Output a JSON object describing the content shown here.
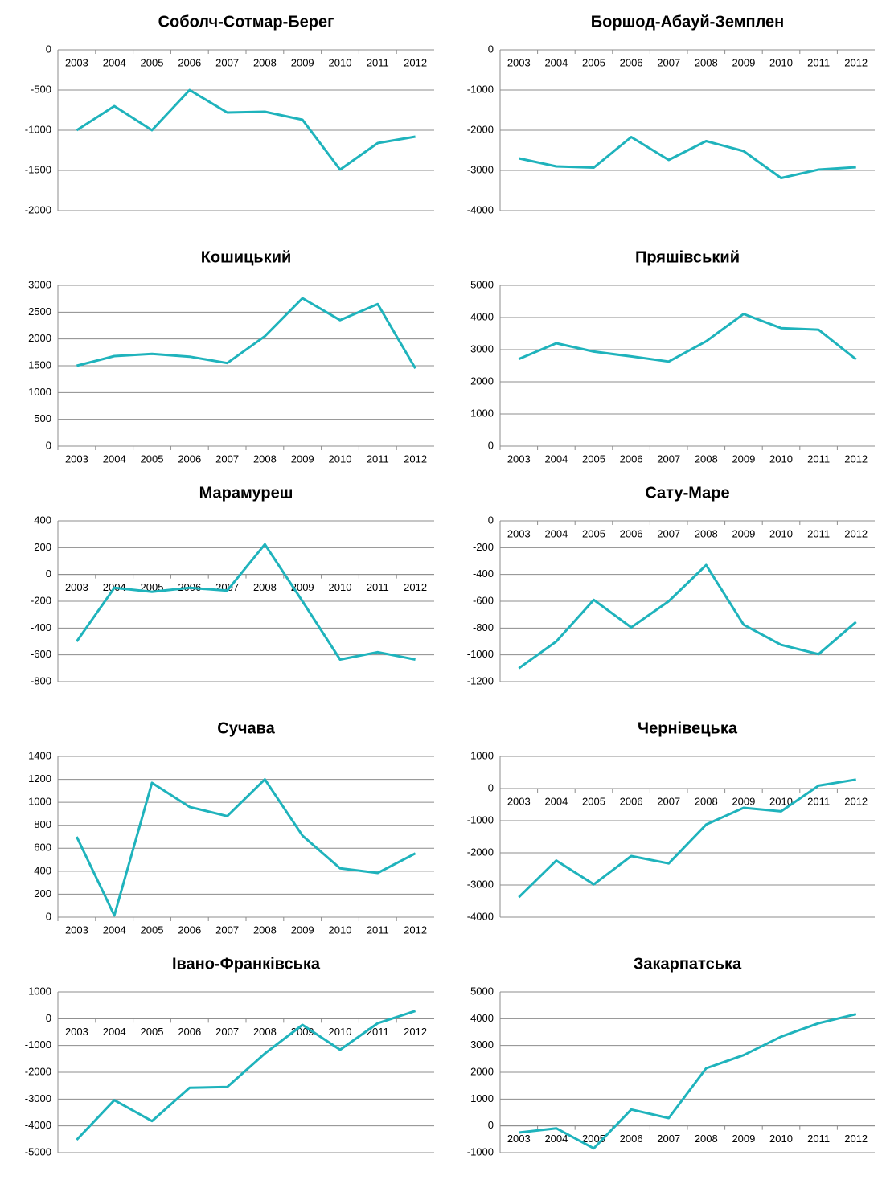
{
  "chart_data": [
    {
      "type": "line",
      "title": "Соболч-Сотмар-Берег",
      "categories": [
        "2003",
        "2004",
        "2005",
        "2006",
        "2007",
        "2008",
        "2009",
        "2010",
        "2011",
        "2012"
      ],
      "values": [
        -1000,
        -700,
        -1000,
        -500,
        -780,
        -770,
        -870,
        -1490,
        -1160,
        -1080
      ],
      "color": "#1fb3bc",
      "ylim": [
        -2000,
        0
      ],
      "yticks": [
        0,
        -500,
        -1000,
        -1500,
        -2000
      ],
      "grid": true
    },
    {
      "type": "line",
      "title": "Боршод-Абауй-Земплен",
      "categories": [
        "2003",
        "2004",
        "2005",
        "2006",
        "2007",
        "2008",
        "2009",
        "2010",
        "2011",
        "2012"
      ],
      "values": [
        -2700,
        -2900,
        -2930,
        -2170,
        -2740,
        -2270,
        -2520,
        -3190,
        -2980,
        -2920
      ],
      "color": "#1fb3bc",
      "ylim": [
        -4000,
        0
      ],
      "yticks": [
        0,
        -1000,
        -2000,
        -3000,
        -4000
      ],
      "grid": true
    },
    {
      "type": "line",
      "title": "Кошицький",
      "categories": [
        "2003",
        "2004",
        "2005",
        "2006",
        "2007",
        "2008",
        "2009",
        "2010",
        "2011",
        "2012"
      ],
      "values": [
        1500,
        1680,
        1720,
        1670,
        1550,
        2050,
        2760,
        2350,
        2650,
        1450
      ],
      "color": "#1fb3bc",
      "ylim": [
        0,
        3000
      ],
      "yticks": [
        3000,
        2500,
        2000,
        1500,
        1000,
        500,
        0
      ],
      "grid": true
    },
    {
      "type": "line",
      "title": "Пряшівський",
      "categories": [
        "2003",
        "2004",
        "2005",
        "2006",
        "2007",
        "2008",
        "2009",
        "2010",
        "2011",
        "2012"
      ],
      "values": [
        2710,
        3200,
        2940,
        2790,
        2630,
        3260,
        4110,
        3670,
        3620,
        2700
      ],
      "color": "#1fb3bc",
      "ylim": [
        0,
        5000
      ],
      "yticks": [
        5000,
        4000,
        3000,
        2000,
        1000,
        0
      ],
      "grid": true
    },
    {
      "type": "line",
      "title": "Марамуреш",
      "categories": [
        "2003",
        "2004",
        "2005",
        "2006",
        "2007",
        "2008",
        "2009",
        "2010",
        "2011",
        "2012"
      ],
      "values": [
        -500,
        -100,
        -130,
        -100,
        -120,
        225,
        -200,
        -635,
        -580,
        -635
      ],
      "color": "#1fb3bc",
      "ylim": [
        -800,
        400
      ],
      "yticks": [
        400,
        200,
        0,
        -200,
        -400,
        -600,
        -800
      ],
      "grid": true
    },
    {
      "type": "line",
      "title": "Сату-Маре",
      "categories": [
        "2003",
        "2004",
        "2005",
        "2006",
        "2007",
        "2008",
        "2009",
        "2010",
        "2011",
        "2012"
      ],
      "values": [
        -1100,
        -900,
        -590,
        -795,
        -600,
        -330,
        -775,
        -925,
        -995,
        -755
      ],
      "color": "#1fb3bc",
      "ylim": [
        -1200,
        0
      ],
      "yticks": [
        0,
        -200,
        -400,
        -600,
        -800,
        -1000,
        -1200
      ],
      "grid": true
    },
    {
      "type": "line",
      "title": "Сучава",
      "categories": [
        "2003",
        "2004",
        "2005",
        "2006",
        "2007",
        "2008",
        "2009",
        "2010",
        "2011",
        "2012"
      ],
      "values": [
        700,
        15,
        1170,
        960,
        880,
        1200,
        710,
        425,
        385,
        555
      ],
      "color": "#1fb3bc",
      "ylim": [
        0,
        1400
      ],
      "yticks": [
        1400,
        1200,
        1000,
        800,
        600,
        400,
        200,
        0
      ],
      "grid": true
    },
    {
      "type": "line",
      "title": "Чернівецька",
      "categories": [
        "2003",
        "2004",
        "2005",
        "2006",
        "2007",
        "2008",
        "2009",
        "2010",
        "2011",
        "2012"
      ],
      "values": [
        -3380,
        -2240,
        -2980,
        -2100,
        -2330,
        -1120,
        -600,
        -710,
        90,
        280
      ],
      "color": "#1fb3bc",
      "ylim": [
        -4000,
        1000
      ],
      "yticks": [
        1000,
        0,
        -1000,
        -2000,
        -3000,
        -4000
      ],
      "grid": true
    },
    {
      "type": "line",
      "title": "Івано-Франківська",
      "categories": [
        "2003",
        "2004",
        "2005",
        "2006",
        "2007",
        "2008",
        "2009",
        "2010",
        "2011",
        "2012"
      ],
      "values": [
        -4520,
        -3040,
        -3820,
        -2580,
        -2550,
        -1300,
        -230,
        -1160,
        -170,
        290
      ],
      "color": "#1fb3bc",
      "ylim": [
        -5000,
        1000
      ],
      "yticks": [
        1000,
        0,
        -1000,
        -2000,
        -3000,
        -4000,
        -5000
      ],
      "grid": true
    },
    {
      "type": "line",
      "title": "Закарпатська",
      "categories": [
        "2003",
        "2004",
        "2005",
        "2006",
        "2007",
        "2008",
        "2009",
        "2010",
        "2011",
        "2012"
      ],
      "values": [
        -250,
        -90,
        -840,
        610,
        290,
        2150,
        2640,
        3330,
        3830,
        4170
      ],
      "color": "#1fb3bc",
      "ylim": [
        -1000,
        5000
      ],
      "yticks": [
        5000,
        4000,
        3000,
        2000,
        1000,
        0,
        -1000
      ],
      "grid": true
    }
  ]
}
